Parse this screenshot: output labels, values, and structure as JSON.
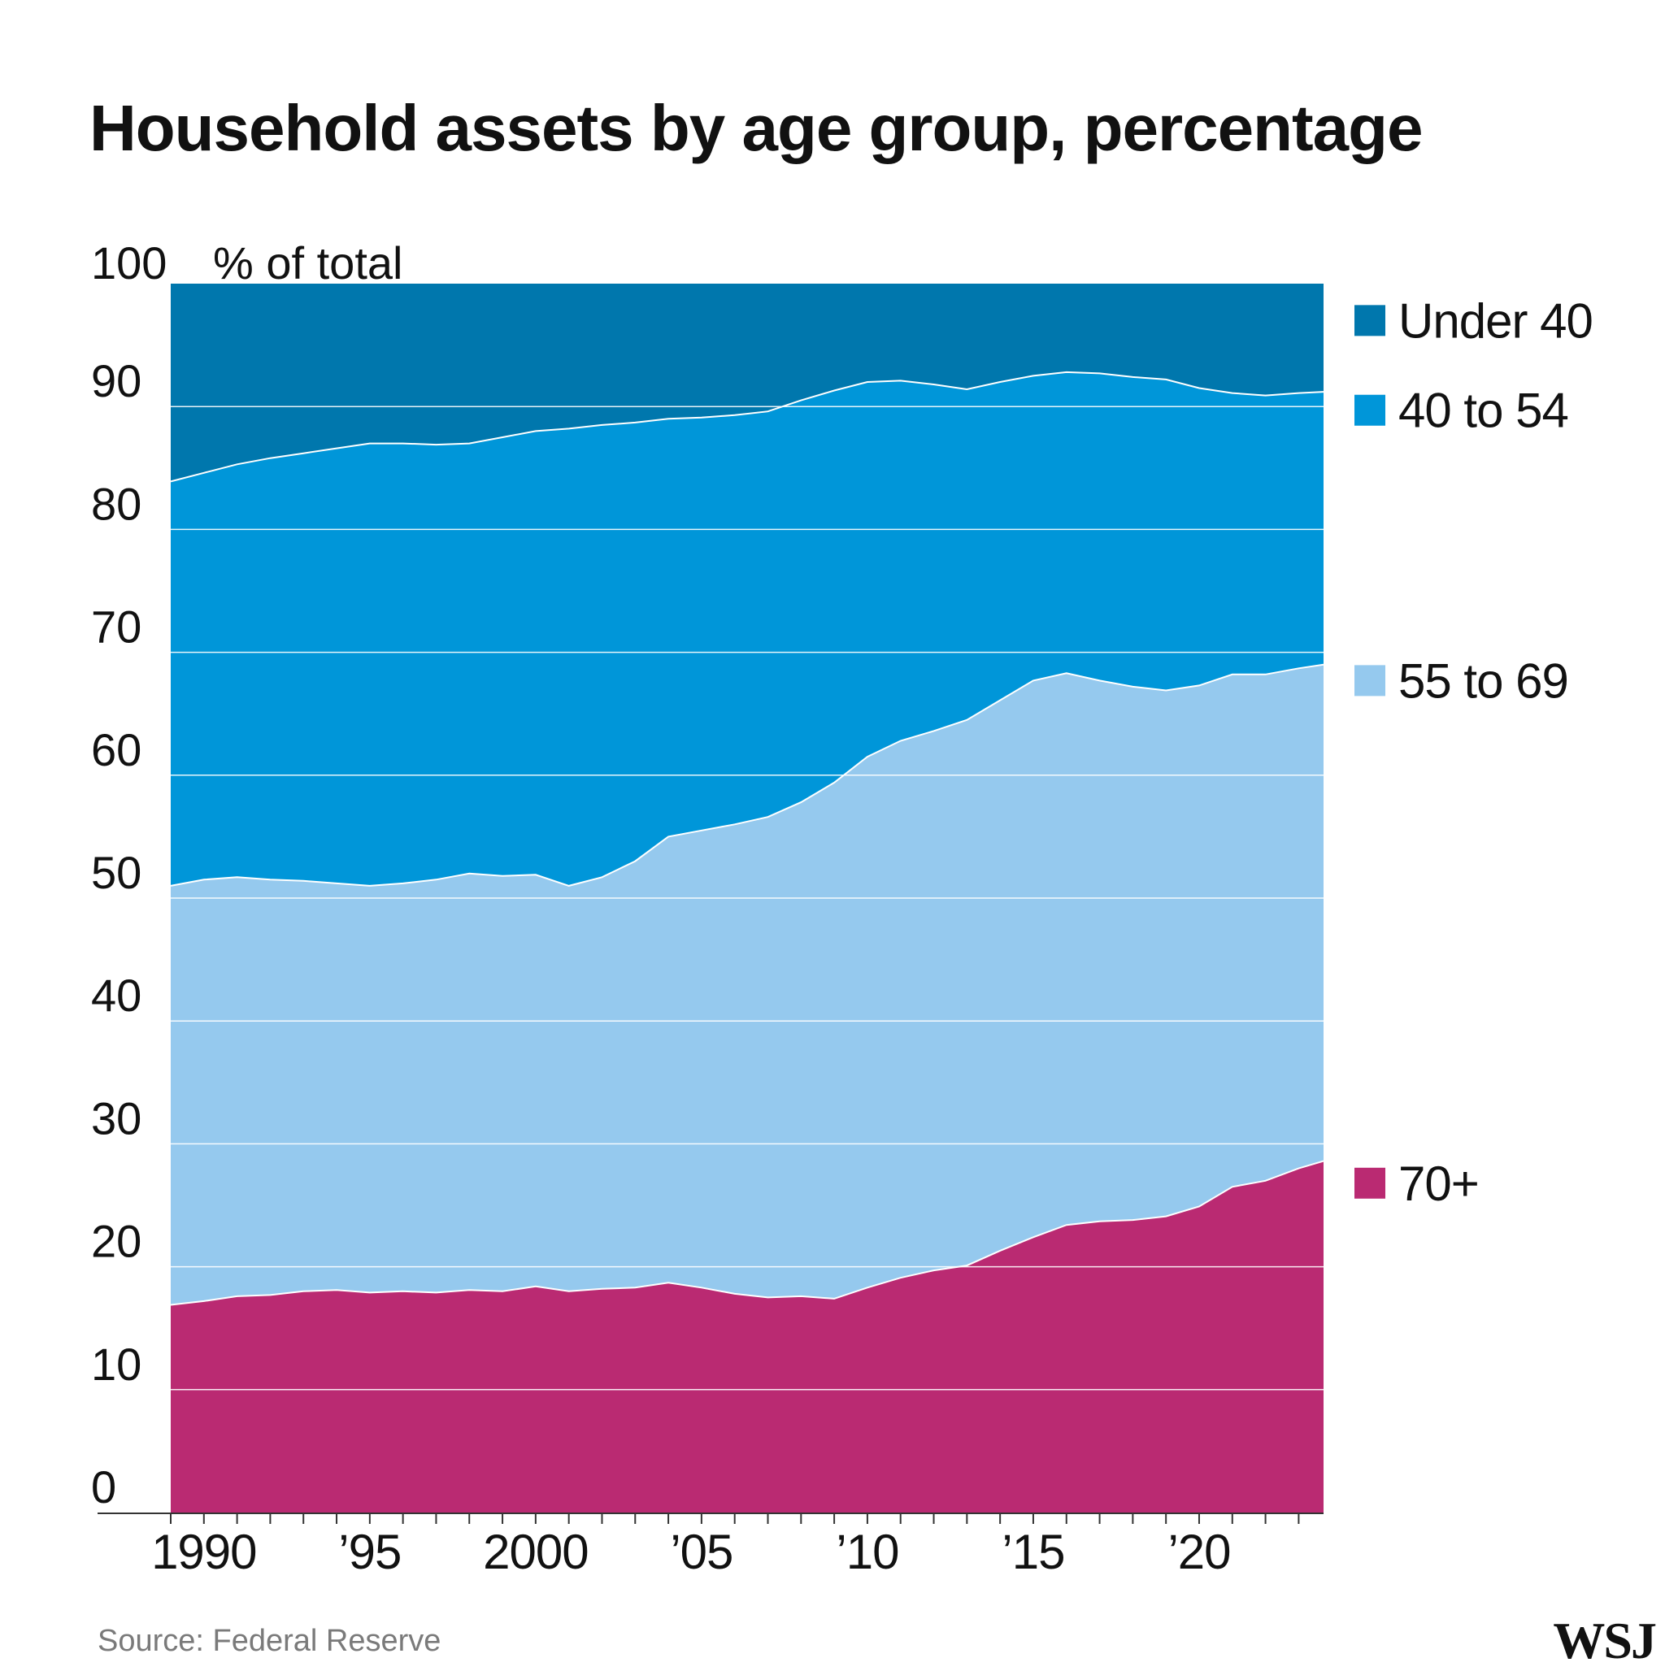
{
  "chart_data": {
    "type": "area",
    "stacked": true,
    "title": "Household assets by age group, percentage",
    "ylabel": "% of total",
    "ylim": [
      0,
      100
    ],
    "yticks": [
      0,
      10,
      20,
      30,
      40,
      50,
      60,
      70,
      80,
      90,
      100
    ],
    "xlim": [
      1989.0,
      2023.75
    ],
    "xticks": [
      {
        "value": 1990,
        "label": "1990"
      },
      {
        "value": 1995,
        "label": "’95"
      },
      {
        "value": 2000,
        "label": "2000"
      },
      {
        "value": 2005,
        "label": "’05"
      },
      {
        "value": 2010,
        "label": "’10"
      },
      {
        "value": 2015,
        "label": "’15"
      },
      {
        "value": 2020,
        "label": "’20"
      }
    ],
    "grid": true,
    "legend_position": "right",
    "x": [
      1989.0,
      1990.0,
      1991.0,
      1992.0,
      1993.0,
      1994.0,
      1995.0,
      1996.0,
      1997.0,
      1998.0,
      1999.0,
      2000.0,
      2001.0,
      2002.0,
      2003.0,
      2004.0,
      2005.0,
      2006.0,
      2007.0,
      2008.0,
      2009.0,
      2010.0,
      2011.0,
      2012.0,
      2013.0,
      2014.0,
      2015.0,
      2016.0,
      2017.0,
      2018.0,
      2019.0,
      2020.0,
      2021.0,
      2022.0,
      2023.0,
      2023.75
    ],
    "series_boundaries": [
      {
        "name": "70+",
        "color": "#ba2a72",
        "values": [
          16.9,
          17.2,
          17.6,
          17.7,
          18.0,
          18.1,
          17.9,
          18.0,
          17.9,
          18.1,
          18.0,
          18.4,
          18.0,
          18.2,
          18.3,
          18.7,
          18.3,
          17.8,
          17.5,
          17.6,
          17.4,
          18.3,
          19.1,
          19.7,
          20.1,
          21.3,
          22.4,
          23.4,
          23.7,
          23.8,
          24.1,
          24.9,
          26.5,
          27.0,
          28.0,
          28.6
        ]
      },
      {
        "name": "55 to 69",
        "color": "#95c9ee",
        "values": [
          51.0,
          51.5,
          51.7,
          51.5,
          51.4,
          51.2,
          51.0,
          51.2,
          51.5,
          52.0,
          51.8,
          51.9,
          51.0,
          51.7,
          53.0,
          55.0,
          55.5,
          56.0,
          56.6,
          57.8,
          59.4,
          61.5,
          62.8,
          63.6,
          64.5,
          66.1,
          67.7,
          68.3,
          67.7,
          67.2,
          66.9,
          67.3,
          68.2,
          68.2,
          68.7,
          69.0
        ]
      },
      {
        "name": "40 to 54",
        "color": "#0096d9",
        "values": [
          83.9,
          84.6,
          85.3,
          85.8,
          86.2,
          86.6,
          87.0,
          87.0,
          86.9,
          87.0,
          87.5,
          88.0,
          88.2,
          88.5,
          88.7,
          89.0,
          89.1,
          89.3,
          89.6,
          90.5,
          91.3,
          92.0,
          92.1,
          91.8,
          91.4,
          92.0,
          92.5,
          92.8,
          92.7,
          92.4,
          92.2,
          91.5,
          91.1,
          90.9,
          91.1,
          91.2
        ]
      },
      {
        "name": "Under 40",
        "color": "#0077ad",
        "values": [
          100,
          100,
          100,
          100,
          100,
          100,
          100,
          100,
          100,
          100,
          100,
          100,
          100,
          100,
          100,
          100,
          100,
          100,
          100,
          100,
          100,
          100,
          100,
          100,
          100,
          100,
          100,
          100,
          100,
          100,
          100,
          100,
          100,
          100,
          100,
          100
        ]
      }
    ],
    "legend": [
      {
        "label": "Under 40",
        "color": "#0077ad",
        "anchor_value": 97
      },
      {
        "label": "40 to 54",
        "color": "#0096d9",
        "anchor_value": 89.7
      },
      {
        "label": "55 to 69",
        "color": "#95c9ee",
        "anchor_value": 67.7
      },
      {
        "label": "70+",
        "color": "#ba2a72",
        "anchor_value": 26.8
      }
    ]
  },
  "source": "Source: Federal Reserve",
  "logo": "WSJ"
}
